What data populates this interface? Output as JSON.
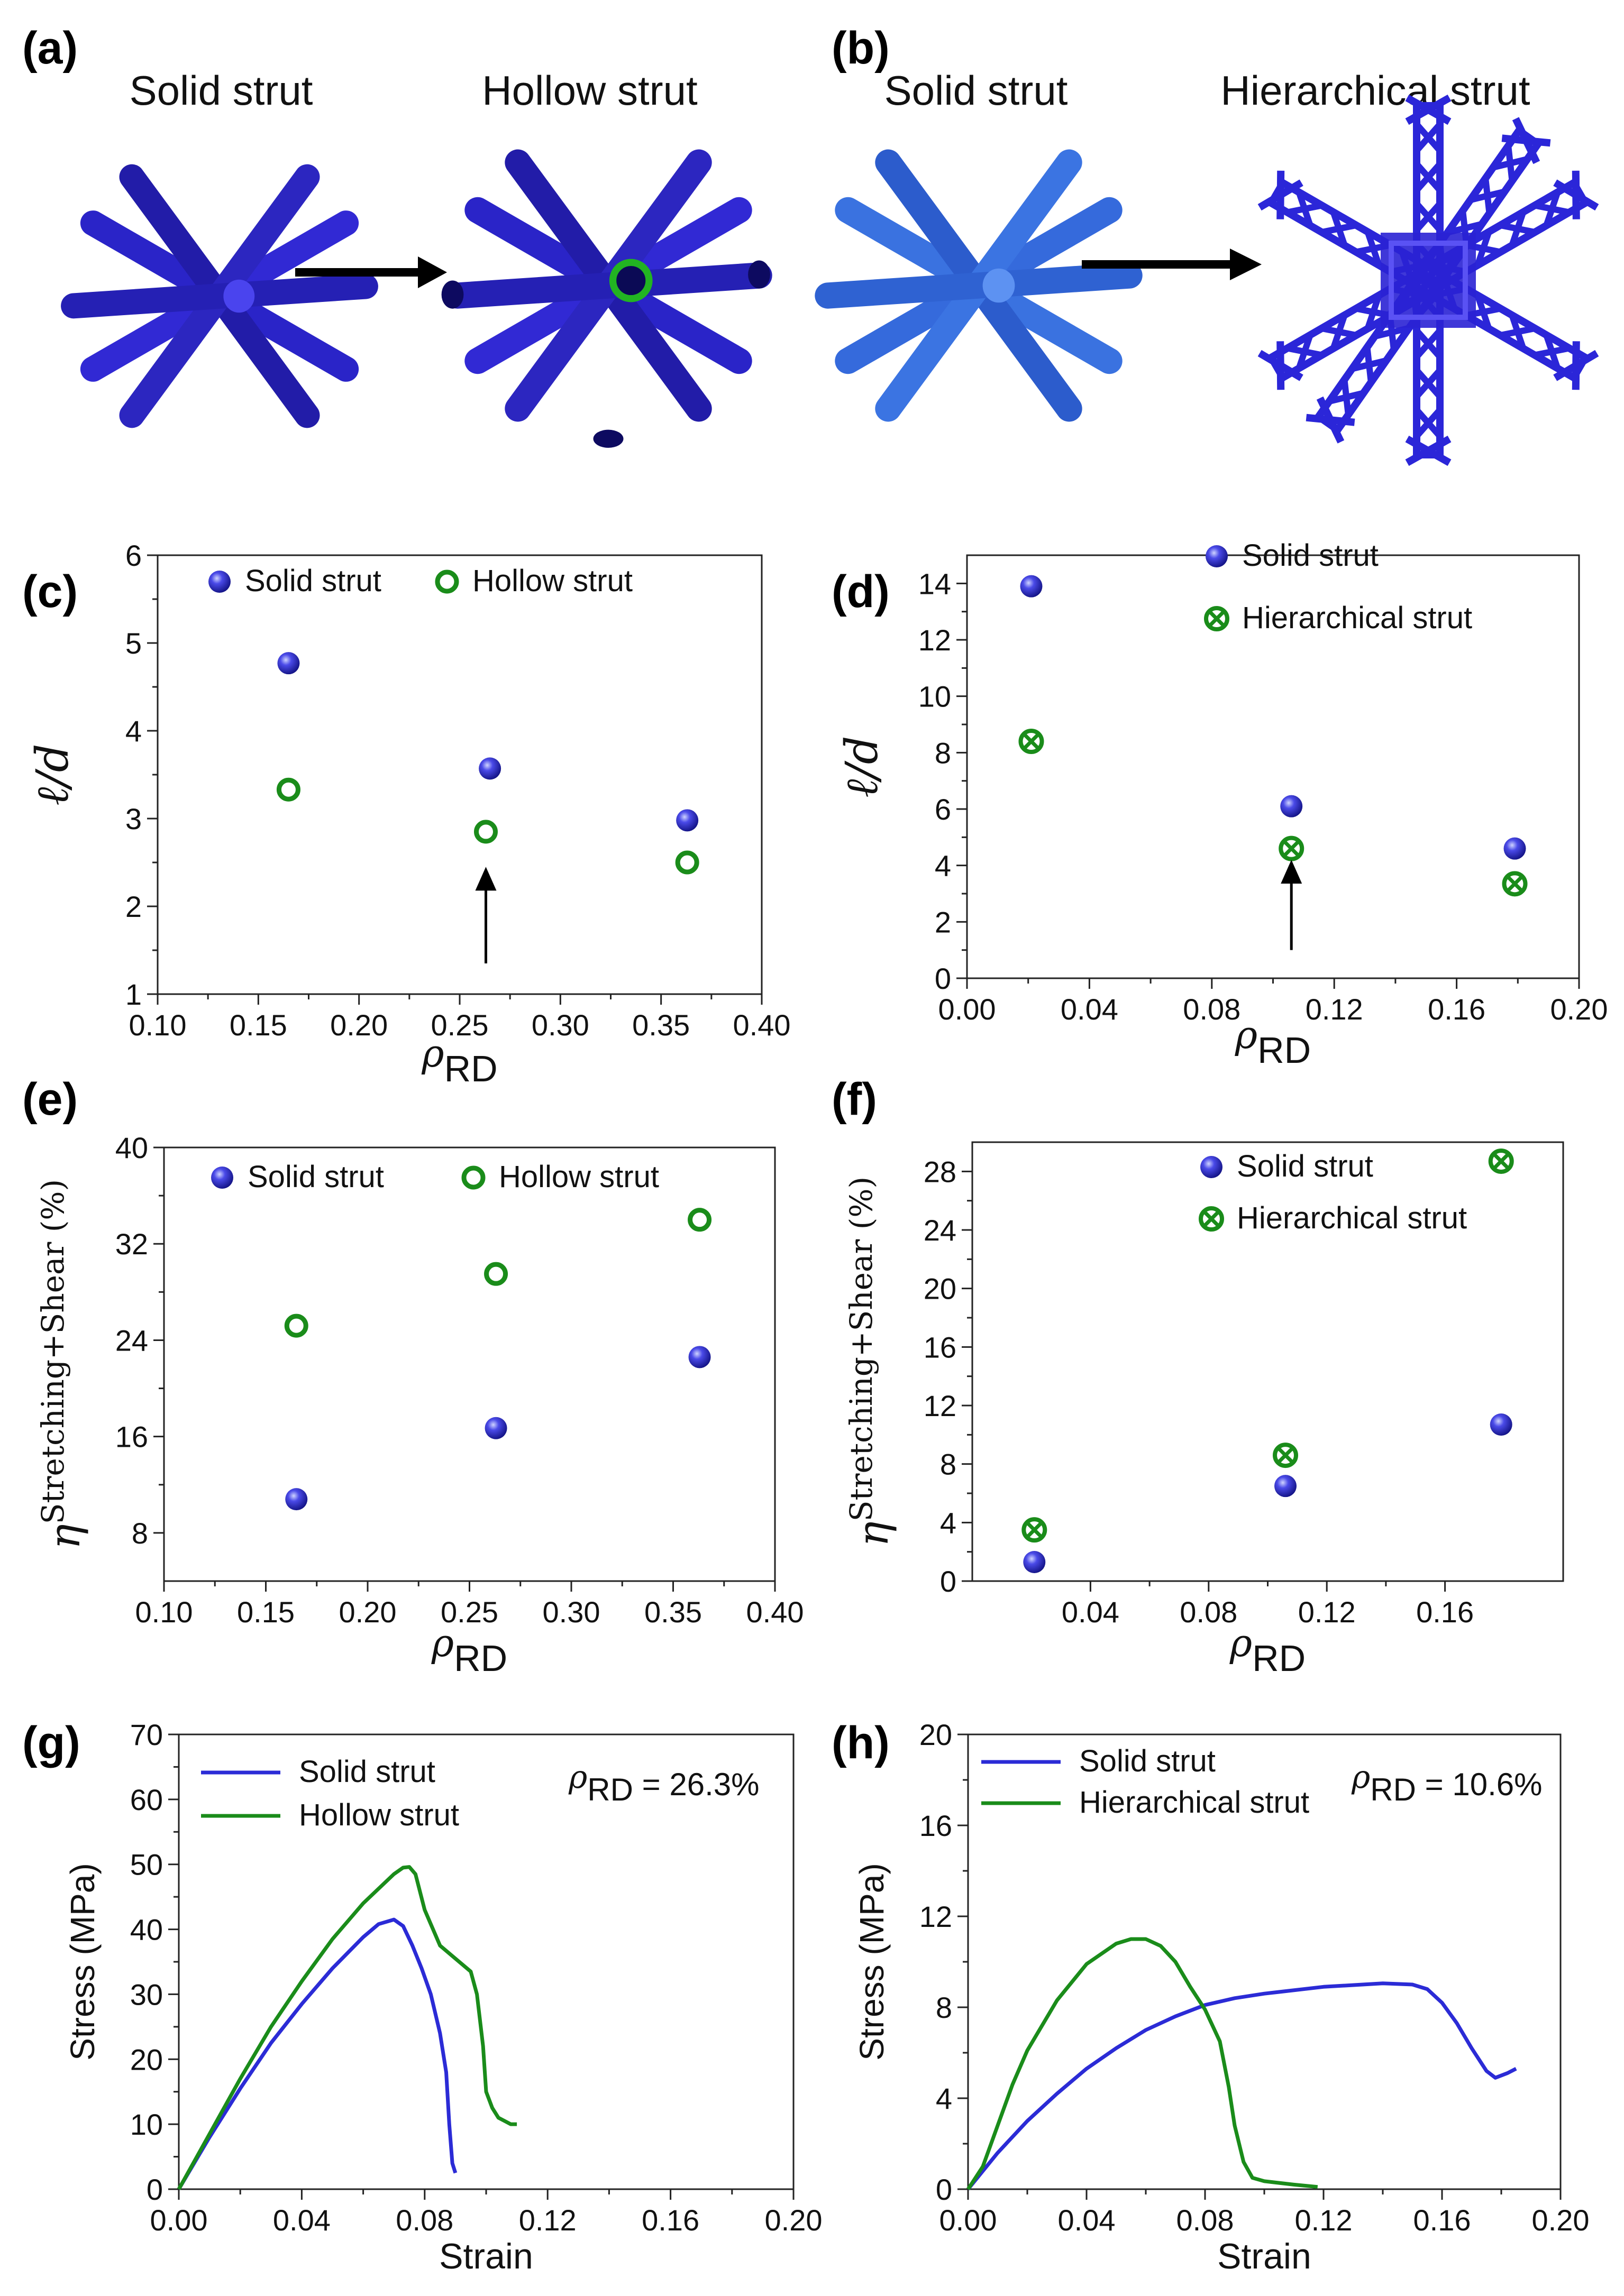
{
  "panel_labels": [
    "(a)",
    "(b)",
    "(c)",
    "(d)",
    "(e)",
    "(f)",
    "(g)",
    "(h)"
  ],
  "illustrations": {
    "a": {
      "left_title": "Solid strut",
      "right_title": "Hollow strut"
    },
    "b": {
      "left_title": "Solid strut",
      "right_title": "Hierarchical strut"
    }
  },
  "colors": {
    "solid": "#2b2bd6",
    "hollow": "#1a8c1a",
    "strut_a": "#2a24c8",
    "strut_b": "#2f66d8"
  },
  "chart_data": [
    {
      "id": "c",
      "type": "scatter",
      "ylabel": "ℓ/d",
      "xlabel": "ρRD",
      "xlabel_main": "ρ",
      "xlabel_sub": "RD",
      "xlim": [
        0.1,
        0.4
      ],
      "ylim": [
        1,
        6
      ],
      "xticks": [
        0.1,
        0.15,
        0.2,
        0.25,
        0.3,
        0.35,
        0.4
      ],
      "xtick_labels": [
        "0.10",
        "0.15",
        "0.20",
        "0.25",
        "0.30",
        "0.35",
        "0.40"
      ],
      "yticks": [
        1,
        2,
        3,
        4,
        5,
        6
      ],
      "ytick_labels": [
        "1",
        "2",
        "3",
        "4",
        "5",
        "6"
      ],
      "series": [
        {
          "name": "Solid strut",
          "marker": "sphere",
          "x": [
            0.165,
            0.265,
            0.363
          ],
          "y": [
            4.77,
            3.57,
            2.98
          ]
        },
        {
          "name": "Hollow strut",
          "marker": "open-circle",
          "x": [
            0.165,
            0.263,
            0.363
          ],
          "y": [
            3.33,
            2.85,
            2.5
          ]
        }
      ],
      "annotations": [
        {
          "type": "arrow",
          "x": 0.263,
          "y_from": 1.35,
          "y_to": 2.45
        }
      ]
    },
    {
      "id": "d",
      "type": "scatter",
      "ylabel": "ℓ/d",
      "xlabel": "ρRD",
      "xlabel_main": "ρ",
      "xlabel_sub": "RD",
      "xlim": [
        0.0,
        0.2
      ],
      "ylim": [
        0,
        15
      ],
      "xticks": [
        0.0,
        0.04,
        0.08,
        0.12,
        0.16,
        0.2
      ],
      "xtick_labels": [
        "0.00",
        "0.04",
        "0.08",
        "0.12",
        "0.16",
        "0.20"
      ],
      "yticks": [
        0,
        2,
        4,
        6,
        8,
        10,
        12,
        14
      ],
      "ytick_labels": [
        "0",
        "2",
        "4",
        "6",
        "8",
        "10",
        "12",
        "14"
      ],
      "series": [
        {
          "name": "Solid strut",
          "marker": "sphere",
          "x": [
            0.021,
            0.106,
            0.179
          ],
          "y": [
            13.9,
            6.1,
            4.6
          ]
        },
        {
          "name": "Hierarchical strut",
          "marker": "crossed-circle",
          "x": [
            0.021,
            0.106,
            0.179
          ],
          "y": [
            8.4,
            4.6,
            3.35
          ]
        }
      ],
      "annotations": [
        {
          "type": "arrow",
          "x": 0.106,
          "y_from": 1.0,
          "y_to": 4.2
        }
      ]
    },
    {
      "id": "e",
      "type": "scatter",
      "ylabel": "η^{Stretching+Shear} (%)",
      "ylabel_main": "η",
      "ylabel_sup": "Stretching+Shear",
      "ylabel_unit": "(%)",
      "xlabel": "ρRD",
      "xlabel_main": "ρ",
      "xlabel_sub": "RD",
      "xlim": [
        0.1,
        0.4
      ],
      "ylim": [
        4,
        40
      ],
      "xticks": [
        0.1,
        0.15,
        0.2,
        0.25,
        0.3,
        0.35,
        0.4
      ],
      "xtick_labels": [
        "0.10",
        "0.15",
        "0.20",
        "0.25",
        "0.30",
        "0.35",
        "0.40"
      ],
      "yticks": [
        8,
        16,
        24,
        32,
        40
      ],
      "ytick_labels": [
        "8",
        "16",
        "24",
        "32",
        "40"
      ],
      "series": [
        {
          "name": "Solid strut",
          "marker": "sphere",
          "x": [
            0.165,
            0.263,
            0.363
          ],
          "y": [
            10.8,
            16.7,
            22.6
          ]
        },
        {
          "name": "Hollow strut",
          "marker": "open-circle",
          "x": [
            0.165,
            0.263,
            0.363
          ],
          "y": [
            25.2,
            29.5,
            34.0
          ]
        }
      ]
    },
    {
      "id": "f",
      "type": "scatter",
      "ylabel": "η^{Stretching+Shear} (%)",
      "ylabel_main": "η",
      "ylabel_sup": "Stretching+Shear",
      "ylabel_unit": "(%)",
      "xlabel": "ρRD",
      "xlabel_main": "ρ",
      "xlabel_sub": "RD",
      "xlim": [
        0.0,
        0.2
      ],
      "ylim": [
        0,
        30
      ],
      "xticks": [
        0.04,
        0.08,
        0.12,
        0.16
      ],
      "xtick_labels": [
        "0.04",
        "0.08",
        "0.12",
        "0.16"
      ],
      "yticks": [
        0,
        4,
        8,
        12,
        16,
        20,
        24,
        28
      ],
      "ytick_labels": [
        "0",
        "4",
        "8",
        "12",
        "16",
        "20",
        "24",
        "28"
      ],
      "series": [
        {
          "name": "Solid strut",
          "marker": "sphere",
          "x": [
            0.021,
            0.106,
            0.179
          ],
          "y": [
            1.3,
            6.5,
            10.7
          ]
        },
        {
          "name": "Hierarchical strut",
          "marker": "crossed-circle",
          "x": [
            0.021,
            0.106,
            0.179
          ],
          "y": [
            3.5,
            8.6,
            28.7
          ]
        }
      ]
    },
    {
      "id": "g",
      "type": "line",
      "xlabel": "Strain",
      "ylabel": "Stress (MPa)",
      "xlim": [
        0.0,
        0.2
      ],
      "ylim": [
        0,
        70
      ],
      "xticks": [
        0.0,
        0.04,
        0.08,
        0.12,
        0.16,
        0.2
      ],
      "xtick_labels": [
        "0.00",
        "0.04",
        "0.08",
        "0.12",
        "0.16",
        "0.20"
      ],
      "yticks": [
        0,
        10,
        20,
        30,
        40,
        50,
        60,
        70
      ],
      "ytick_labels": [
        "0",
        "10",
        "20",
        "30",
        "40",
        "50",
        "60",
        "70"
      ],
      "annotation": {
        "main": "ρ",
        "sub": "RD",
        "value": " = 26.3%"
      },
      "series": [
        {
          "name": "Solid strut",
          "x": [
            0,
            0.01,
            0.02,
            0.03,
            0.04,
            0.05,
            0.06,
            0.065,
            0.07,
            0.073,
            0.076,
            0.079,
            0.082,
            0.085,
            0.087,
            0.088,
            0.089,
            0.09
          ],
          "y": [
            0,
            8,
            15.5,
            22.5,
            28.5,
            34,
            38.8,
            40.8,
            41.5,
            40.5,
            37.5,
            34,
            30,
            24,
            18,
            10,
            4,
            2.5
          ]
        },
        {
          "name": "Hollow strut",
          "x": [
            0,
            0.01,
            0.02,
            0.03,
            0.04,
            0.05,
            0.06,
            0.07,
            0.073,
            0.075,
            0.077,
            0.08,
            0.085,
            0.09,
            0.095,
            0.097,
            0.099,
            0.1,
            0.102,
            0.104,
            0.106,
            0.108,
            0.11
          ],
          "y": [
            0,
            8.5,
            17,
            25,
            32,
            38.5,
            44,
            48.5,
            49.5,
            49.6,
            48.5,
            43,
            37.5,
            35.5,
            33.5,
            30,
            22,
            15,
            12.5,
            11,
            10.5,
            10,
            10
          ]
        }
      ]
    },
    {
      "id": "h",
      "type": "line",
      "xlabel": "Strain",
      "ylabel": "Stress (MPa)",
      "xlim": [
        0.0,
        0.2
      ],
      "ylim": [
        0,
        20
      ],
      "xticks": [
        0.0,
        0.04,
        0.08,
        0.12,
        0.16,
        0.2
      ],
      "xtick_labels": [
        "0.00",
        "0.04",
        "0.08",
        "0.12",
        "0.16",
        "0.20"
      ],
      "yticks": [
        0,
        4,
        8,
        12,
        16,
        20
      ],
      "ytick_labels": [
        "0",
        "4",
        "8",
        "12",
        "16",
        "20"
      ],
      "annotation": {
        "main": "ρ",
        "sub": "RD",
        "value": " = 10.6%"
      },
      "series": [
        {
          "name": "Solid strut",
          "x": [
            0,
            0.01,
            0.02,
            0.03,
            0.04,
            0.05,
            0.06,
            0.07,
            0.08,
            0.09,
            0.1,
            0.12,
            0.14,
            0.15,
            0.155,
            0.16,
            0.165,
            0.17,
            0.175,
            0.178,
            0.182,
            0.185
          ],
          "y": [
            0,
            1.6,
            3.0,
            4.2,
            5.3,
            6.2,
            7.0,
            7.6,
            8.1,
            8.4,
            8.6,
            8.9,
            9.05,
            9.0,
            8.8,
            8.2,
            7.3,
            6.2,
            5.2,
            4.9,
            5.1,
            5.3
          ]
        },
        {
          "name": "Hierarchical strut",
          "x": [
            0,
            0.005,
            0.01,
            0.015,
            0.02,
            0.03,
            0.04,
            0.05,
            0.055,
            0.06,
            0.065,
            0.07,
            0.075,
            0.08,
            0.085,
            0.088,
            0.09,
            0.093,
            0.096,
            0.1,
            0.11,
            0.118
          ],
          "y": [
            0,
            1.0,
            2.8,
            4.6,
            6.1,
            8.3,
            9.9,
            10.8,
            11.0,
            11.0,
            10.7,
            10.0,
            8.9,
            7.9,
            6.5,
            4.5,
            2.8,
            1.2,
            0.5,
            0.35,
            0.2,
            0.1
          ]
        }
      ]
    }
  ]
}
